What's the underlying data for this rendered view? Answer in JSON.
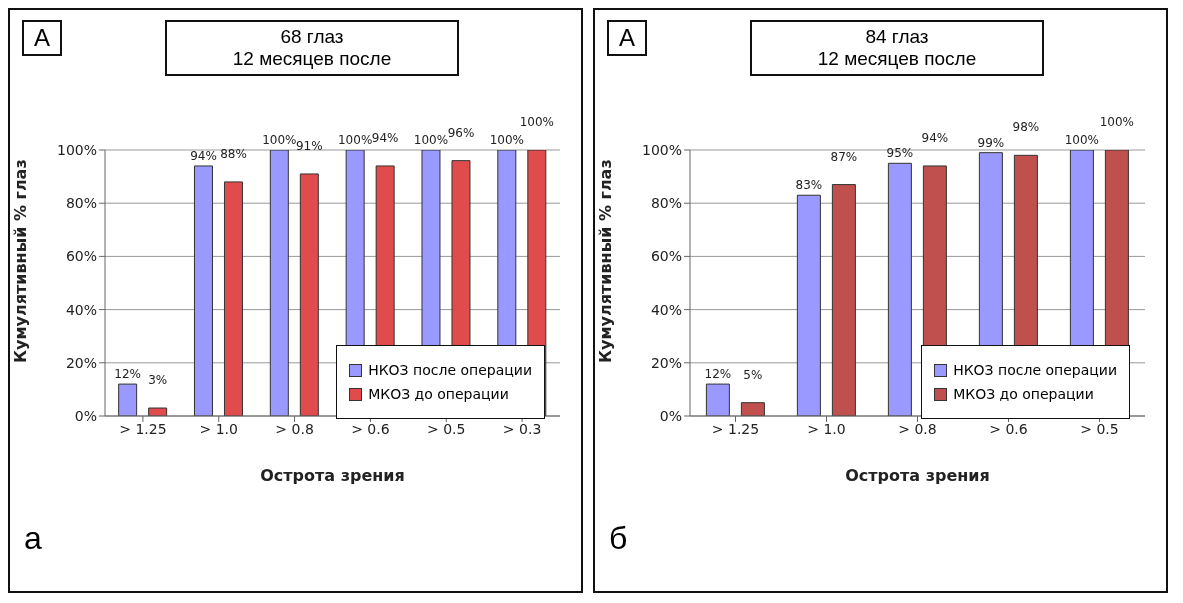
{
  "chart_data": [
    {
      "type": "bar",
      "title": "68 глаз",
      "subtitle": "12 месяцев после",
      "xlabel": "Острота зрения",
      "ylabel": "Кумулятивный % глаз",
      "annotations": [
        "A",
        "а"
      ],
      "categories": [
        "> 1.25",
        "> 1.0",
        "> 0.8",
        "> 0.6",
        "> 0.5",
        "> 0.3"
      ],
      "series": [
        {
          "name": "НКОЗ после операции",
          "color": "#9999ff",
          "values": [
            12,
            94,
            100,
            100,
            100,
            100
          ],
          "value_labels": [
            "12%",
            "94%",
            "100%",
            "100%",
            "100%",
            "100%"
          ]
        },
        {
          "name": "МКОЗ до операции",
          "color": "#e04c4c",
          "values": [
            3,
            88,
            91,
            94,
            96,
            100
          ],
          "value_labels": [
            "3%",
            "88%",
            "91%",
            "94%",
            "96%",
            "100%"
          ]
        }
      ],
      "ylim": [
        0,
        100
      ],
      "yticks": [
        {
          "value": 0,
          "label": "0%"
        },
        {
          "value": 20,
          "label": "20%"
        },
        {
          "value": 40,
          "label": "40%"
        },
        {
          "value": 60,
          "label": "60%"
        },
        {
          "value": 80,
          "label": "80%"
        },
        {
          "value": 100,
          "label": "100%"
        }
      ],
      "grid": "y",
      "legend": "right"
    },
    {
      "type": "bar",
      "title": "84 глаз",
      "subtitle": "12 месяцев после",
      "xlabel": "Острота зрения",
      "ylabel": "Кумулятивный % глаз",
      "annotations": [
        "A",
        "б"
      ],
      "categories": [
        "> 1.25",
        "> 1.0",
        "> 0.8",
        "> 0.6",
        "> 0.5"
      ],
      "series": [
        {
          "name": "НКОЗ после операции",
          "color": "#9999ff",
          "values": [
            12,
            83,
            95,
            99,
            100
          ],
          "value_labels": [
            "12%",
            "83%",
            "95%",
            "99%",
            "100%"
          ]
        },
        {
          "name": "МКОЗ до операции",
          "color": "#c0504d",
          "values": [
            5,
            87,
            94,
            98,
            100
          ],
          "value_labels": [
            "5%",
            "87%",
            "94%",
            "98%",
            "100%"
          ]
        }
      ],
      "ylim": [
        0,
        100
      ],
      "yticks": [
        {
          "value": 0,
          "label": "0%"
        },
        {
          "value": 20,
          "label": "20%"
        },
        {
          "value": 40,
          "label": "40%"
        },
        {
          "value": 60,
          "label": "60%"
        },
        {
          "value": 80,
          "label": "80%"
        },
        {
          "value": 100,
          "label": "100%"
        }
      ],
      "grid": "y",
      "legend": "right"
    }
  ]
}
